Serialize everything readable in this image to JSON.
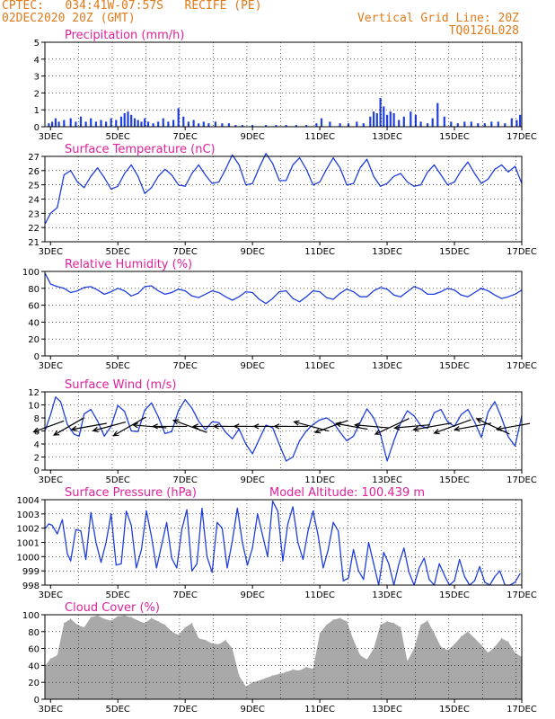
{
  "header": {
    "station_line": "CPTEC:   034:41W-07:57S   RECIFE (PE)",
    "date_line": "02DEC2020 20Z (GMT)",
    "grid_line": "Vertical Grid Line: 20Z",
    "run_code": "TQ0126L028",
    "model_altitude": "Model Altitude: 100.439 m"
  },
  "colors": {
    "header": "#e07a1a",
    "title": "#e0209b",
    "series": "#1f3fe0",
    "cloud": "#a9a9a9",
    "arrow": "#000000"
  },
  "x_axis": {
    "tick_labels": [
      "3DEC",
      "5DEC",
      "7DEC",
      "9DEC",
      "11DEC",
      "13DEC",
      "15DEC",
      "17DEC"
    ],
    "range_days": [
      2.833,
      17.0
    ],
    "grid_interval": "daily at 20Z"
  },
  "chart_data": [
    {
      "id": "precipitation",
      "type": "bar",
      "title": "Precipitation (mm/h)",
      "ylim": [
        0,
        5
      ],
      "yticks": [
        "0",
        "1",
        "2",
        "3",
        "4",
        "5"
      ],
      "grid": true,
      "x": [
        2.95,
        3.05,
        3.15,
        3.25,
        3.4,
        3.6,
        3.75,
        3.9,
        4.05,
        4.2,
        4.35,
        4.5,
        4.65,
        4.8,
        4.95,
        5.1,
        5.2,
        5.3,
        5.4,
        5.5,
        5.6,
        5.7,
        5.8,
        5.9,
        6.05,
        6.2,
        6.35,
        6.5,
        6.65,
        6.8,
        6.95,
        7.1,
        7.25,
        7.4,
        7.55,
        7.7,
        7.9,
        8.1,
        8.3,
        8.5,
        8.7,
        9.0,
        9.4,
        9.7,
        10.0,
        10.3,
        10.6,
        10.9,
        11.05,
        11.3,
        11.6,
        11.85,
        12.1,
        12.3,
        12.5,
        12.6,
        12.7,
        12.8,
        12.9,
        13.0,
        13.1,
        13.2,
        13.35,
        13.5,
        13.7,
        13.85,
        14.0,
        14.2,
        14.35,
        14.5,
        14.7,
        14.9,
        15.1,
        15.3,
        15.5,
        15.7,
        15.9,
        16.1,
        16.3,
        16.5,
        16.7,
        16.85,
        16.95
      ],
      "values": [
        0.2,
        0.3,
        0.5,
        0.3,
        0.4,
        0.5,
        0.3,
        0.6,
        0.3,
        0.5,
        0.3,
        0.4,
        0.3,
        0.5,
        0.4,
        0.6,
        0.8,
        0.9,
        0.7,
        0.5,
        0.4,
        0.3,
        0.5,
        0.3,
        0.2,
        0.3,
        0.5,
        0.3,
        0.4,
        1.1,
        0.6,
        0.3,
        0.4,
        0.2,
        0.3,
        0.2,
        0.3,
        0.2,
        0.2,
        0.1,
        0.1,
        0.1,
        0.1,
        0.1,
        0.1,
        0.1,
        0.1,
        0.2,
        0.5,
        0.3,
        0.2,
        0.2,
        0.3,
        0.2,
        0.6,
        0.9,
        0.8,
        1.7,
        1.2,
        0.7,
        0.9,
        0.8,
        0.4,
        0.6,
        0.9,
        0.7,
        0.3,
        0.2,
        0.5,
        1.4,
        0.6,
        0.3,
        0.2,
        0.3,
        0.3,
        0.2,
        0.2,
        0.3,
        0.3,
        0.2,
        0.5,
        0.4,
        0.7
      ]
    },
    {
      "id": "temperature",
      "type": "line",
      "title": "Surface Temperature (nC)",
      "ylim": [
        21,
        27
      ],
      "yticks": [
        "21",
        "22",
        "23",
        "24",
        "25",
        "26",
        "27"
      ],
      "grid": true,
      "x": [
        2.85,
        3.0,
        3.2,
        3.4,
        3.6,
        3.8,
        4.0,
        4.2,
        4.4,
        4.6,
        4.8,
        5.0,
        5.2,
        5.4,
        5.6,
        5.8,
        6.0,
        6.2,
        6.4,
        6.6,
        6.8,
        7.0,
        7.2,
        7.4,
        7.6,
        7.8,
        8.0,
        8.2,
        8.4,
        8.6,
        8.8,
        9.0,
        9.2,
        9.4,
        9.6,
        9.8,
        10.0,
        10.2,
        10.4,
        10.6,
        10.8,
        11.0,
        11.2,
        11.4,
        11.6,
        11.8,
        12.0,
        12.2,
        12.4,
        12.6,
        12.8,
        13.0,
        13.2,
        13.4,
        13.6,
        13.8,
        14.0,
        14.2,
        14.4,
        14.6,
        14.8,
        15.0,
        15.2,
        15.4,
        15.6,
        15.8,
        16.0,
        16.2,
        16.4,
        16.6,
        16.8,
        17.0
      ],
      "values": [
        22.3,
        23.0,
        23.4,
        25.7,
        26.0,
        25.2,
        24.8,
        25.6,
        26.2,
        25.5,
        24.7,
        24.9,
        25.8,
        26.4,
        25.6,
        24.4,
        24.8,
        25.6,
        26.1,
        25.7,
        25.0,
        24.9,
        25.8,
        26.4,
        25.7,
        25.1,
        25.2,
        26.1,
        27.1,
        26.4,
        25.0,
        25.1,
        26.2,
        27.2,
        26.5,
        25.3,
        25.3,
        26.4,
        26.9,
        26.1,
        25.0,
        25.2,
        26.1,
        26.9,
        26.2,
        25.0,
        25.1,
        26.2,
        26.8,
        25.6,
        24.9,
        25.1,
        25.6,
        25.8,
        25.2,
        24.9,
        25.0,
        25.9,
        26.4,
        25.7,
        25.0,
        25.2,
        26.0,
        26.6,
        25.8,
        25.1,
        25.4,
        26.1,
        26.4,
        25.9,
        26.3,
        25.1
      ]
    },
    {
      "id": "humidity",
      "type": "line",
      "title": "Relative Humidity (%)",
      "ylim": [
        0,
        100
      ],
      "yticks": [
        "0",
        "20",
        "40",
        "60",
        "80",
        "100"
      ],
      "grid": true,
      "x": [
        2.85,
        3.0,
        3.2,
        3.4,
        3.6,
        3.8,
        4.0,
        4.2,
        4.4,
        4.6,
        4.8,
        5.0,
        5.2,
        5.4,
        5.6,
        5.8,
        6.0,
        6.2,
        6.4,
        6.6,
        6.8,
        7.0,
        7.2,
        7.4,
        7.6,
        7.8,
        8.0,
        8.2,
        8.4,
        8.6,
        8.8,
        9.0,
        9.2,
        9.4,
        9.6,
        9.8,
        10.0,
        10.2,
        10.4,
        10.6,
        10.8,
        11.0,
        11.2,
        11.4,
        11.6,
        11.8,
        12.0,
        12.2,
        12.4,
        12.6,
        12.8,
        13.0,
        13.2,
        13.4,
        13.6,
        13.8,
        14.0,
        14.2,
        14.4,
        14.6,
        14.8,
        15.0,
        15.2,
        15.4,
        15.6,
        15.8,
        16.0,
        16.2,
        16.4,
        16.6,
        16.8,
        17.0
      ],
      "values": [
        97,
        85,
        82,
        80,
        75,
        77,
        81,
        82,
        78,
        73,
        76,
        80,
        77,
        71,
        74,
        82,
        83,
        77,
        73,
        75,
        79,
        77,
        71,
        69,
        73,
        77,
        75,
        70,
        66,
        70,
        76,
        75,
        67,
        62,
        68,
        76,
        77,
        68,
        64,
        70,
        77,
        76,
        69,
        67,
        74,
        79,
        76,
        70,
        70,
        77,
        81,
        79,
        72,
        70,
        76,
        82,
        79,
        73,
        73,
        76,
        80,
        78,
        72,
        70,
        75,
        80,
        77,
        72,
        68,
        70,
        73,
        78
      ]
    },
    {
      "id": "wind",
      "type": "line",
      "title": "Surface Wind (m/s)",
      "ylim": [
        0,
        12
      ],
      "yticks": [
        "0",
        "2",
        "4",
        "6",
        "8",
        "10",
        "12"
      ],
      "grid": true,
      "x": [
        2.85,
        3.0,
        3.15,
        3.3,
        3.5,
        3.7,
        3.85,
        4.0,
        4.2,
        4.4,
        4.6,
        4.8,
        5.0,
        5.2,
        5.4,
        5.6,
        5.8,
        6.0,
        6.2,
        6.4,
        6.6,
        6.8,
        7.0,
        7.2,
        7.4,
        7.6,
        7.8,
        8.0,
        8.2,
        8.4,
        8.6,
        8.8,
        9.0,
        9.2,
        9.4,
        9.6,
        9.8,
        10.0,
        10.2,
        10.4,
        10.6,
        10.8,
        11.0,
        11.2,
        11.4,
        11.6,
        11.8,
        12.0,
        12.2,
        12.4,
        12.6,
        12.8,
        13.0,
        13.2,
        13.4,
        13.6,
        13.8,
        14.0,
        14.2,
        14.4,
        14.6,
        14.8,
        15.0,
        15.2,
        15.4,
        15.6,
        15.8,
        16.0,
        16.2,
        16.4,
        16.6,
        16.8,
        17.0
      ],
      "values": [
        6.2,
        8.5,
        11.2,
        10.5,
        7.0,
        5.5,
        5.2,
        8.6,
        9.3,
        7.5,
        5.2,
        6.7,
        9.9,
        9.0,
        6.0,
        5.9,
        9.2,
        10.3,
        8.2,
        5.6,
        5.9,
        9.1,
        10.8,
        9.5,
        7.5,
        6.2,
        7.4,
        7.3,
        5.8,
        4.8,
        6.3,
        4.0,
        2.5,
        4.7,
        6.9,
        6.5,
        3.9,
        1.4,
        2.0,
        4.5,
        6.0,
        7.0,
        7.7,
        8.0,
        7.3,
        5.8,
        4.5,
        5.2,
        7.3,
        9.4,
        8.0,
        5.5,
        1.4,
        4.5,
        7.2,
        9.1,
        8.3,
        6.8,
        6.4,
        8.8,
        9.3,
        7.4,
        6.7,
        8.5,
        9.3,
        7.4,
        5.0,
        8.9,
        10.5,
        8.0,
        5.1,
        3.7,
        8.3
      ]
    },
    {
      "id": "pressure",
      "type": "line",
      "title": "Surface Pressure (hPa)",
      "ylim": [
        998,
        1004
      ],
      "yticks": [
        "998",
        "999",
        "1000",
        "1001",
        "1002",
        "1003",
        "1004"
      ],
      "grid": true,
      "x": [
        2.85,
        2.95,
        3.05,
        3.2,
        3.35,
        3.5,
        3.6,
        3.75,
        3.9,
        4.05,
        4.2,
        4.35,
        4.5,
        4.65,
        4.8,
        4.95,
        5.1,
        5.25,
        5.4,
        5.55,
        5.7,
        5.85,
        6.0,
        6.15,
        6.3,
        6.45,
        6.6,
        6.75,
        6.9,
        7.05,
        7.2,
        7.35,
        7.5,
        7.65,
        7.8,
        7.95,
        8.1,
        8.25,
        8.4,
        8.55,
        8.7,
        8.85,
        9.0,
        9.15,
        9.3,
        9.45,
        9.6,
        9.75,
        9.9,
        10.05,
        10.2,
        10.35,
        10.5,
        10.65,
        10.8,
        10.95,
        11.1,
        11.25,
        11.4,
        11.55,
        11.7,
        11.85,
        12.0,
        12.15,
        12.3,
        12.45,
        12.6,
        12.75,
        12.9,
        13.05,
        13.2,
        13.35,
        13.5,
        13.65,
        13.8,
        13.95,
        14.1,
        14.25,
        14.4,
        14.55,
        14.7,
        14.85,
        15.0,
        15.15,
        15.3,
        15.45,
        15.6,
        15.75,
        15.9,
        16.05,
        16.2,
        16.35,
        16.5,
        16.65,
        16.8,
        16.95
      ],
      "values": [
        1002.0,
        1002.3,
        1002.2,
        1001.6,
        1002.6,
        1000.2,
        999.7,
        1001.9,
        1001.8,
        999.8,
        1003.1,
        1001.0,
        999.6,
        1001.0,
        1003.0,
        999.4,
        999.5,
        1003.2,
        1002.2,
        999.2,
        1000.5,
        1003.2,
        1001.4,
        999.2,
        1000.8,
        1002.4,
        999.9,
        999.2,
        1001.9,
        1003.3,
        999.0,
        999.5,
        1003.4,
        1000.0,
        998.9,
        1002.4,
        1002.0,
        999.2,
        1001.1,
        1003.4,
        1001.0,
        999.4,
        1000.6,
        1003.0,
        1001.5,
        1000.0,
        1003.9,
        1003.2,
        999.7,
        1002.3,
        1003.5,
        1001.0,
        999.8,
        1001.8,
        1003.2,
        1001.5,
        999.2,
        1000.5,
        1002.4,
        1001.8,
        998.3,
        998.5,
        1000.5,
        999.0,
        998.4,
        1001.0,
        999.5,
        998.0,
        1000.3,
        999.5,
        998.0,
        999.5,
        1000.6,
        998.9,
        998.0,
        999.2,
        999.9,
        998.4,
        998.0,
        999.5,
        998.7,
        998.0,
        998.3,
        999.8,
        998.6,
        998.0,
        998.3,
        999.3,
        998.2,
        998.0,
        998.6,
        999.0,
        998.0,
        998.0,
        998.2,
        998.8
      ]
    },
    {
      "id": "cloud",
      "type": "area",
      "title": "Cloud Cover (%)",
      "ylim": [
        0,
        100
      ],
      "yticks": [
        "0",
        "20",
        "40",
        "60",
        "80",
        "100"
      ],
      "grid": true,
      "x": [
        2.85,
        3.0,
        3.2,
        3.4,
        3.6,
        3.8,
        4.0,
        4.2,
        4.4,
        4.6,
        4.8,
        5.0,
        5.2,
        5.4,
        5.6,
        5.8,
        6.0,
        6.2,
        6.4,
        6.6,
        6.8,
        7.0,
        7.2,
        7.4,
        7.6,
        7.8,
        8.0,
        8.2,
        8.4,
        8.6,
        8.8,
        9.0,
        9.2,
        9.4,
        9.6,
        9.8,
        10.0,
        10.2,
        10.4,
        10.6,
        10.8,
        11.0,
        11.2,
        11.4,
        11.6,
        11.8,
        12.0,
        12.2,
        12.4,
        12.6,
        12.8,
        13.0,
        13.2,
        13.4,
        13.6,
        13.8,
        14.0,
        14.2,
        14.4,
        14.6,
        14.8,
        15.0,
        15.2,
        15.4,
        15.6,
        15.8,
        16.0,
        16.2,
        16.4,
        16.6,
        16.8,
        17.0
      ],
      "values": [
        40,
        48,
        52,
        90,
        95,
        88,
        85,
        97,
        99,
        95,
        93,
        98,
        99,
        97,
        93,
        90,
        96,
        92,
        88,
        80,
        76,
        85,
        90,
        72,
        70,
        66,
        65,
        70,
        60,
        28,
        15,
        20,
        22,
        25,
        28,
        30,
        32,
        35,
        34,
        38,
        36,
        78,
        88,
        94,
        96,
        92,
        70,
        52,
        47,
        60,
        88,
        92,
        90,
        85,
        45,
        60,
        88,
        93,
        78,
        62,
        58,
        65,
        74,
        80,
        72,
        64,
        55,
        62,
        72,
        68,
        55,
        50
      ]
    }
  ],
  "wind_vectors": {
    "x": [
      2.95,
      3.55,
      4.15,
      4.75,
      5.35,
      5.95,
      6.55,
      7.15,
      7.75,
      8.35,
      8.95,
      9.55,
      10.15,
      10.75,
      11.35,
      11.95,
      12.55,
      13.15,
      13.75,
      14.35,
      14.95,
      15.55,
      16.15,
      16.75
    ],
    "direction_from_deg": [
      70,
      60,
      80,
      75,
      60,
      95,
      90,
      110,
      90,
      90,
      90,
      90,
      90,
      105,
      70,
      100,
      95,
      65,
      85,
      80,
      70,
      80,
      115,
      80
    ],
    "speed": [
      6.5,
      7.0,
      7.2,
      6.8,
      7.5,
      6.8,
      6.9,
      7.2,
      6.9,
      6.8,
      6.7,
      6.9,
      6.8,
      7.2,
      7.0,
      6.5,
      6.9,
      7.5,
      7.2,
      7.8,
      7.9,
      7.5,
      7.3,
      6.8
    ]
  }
}
